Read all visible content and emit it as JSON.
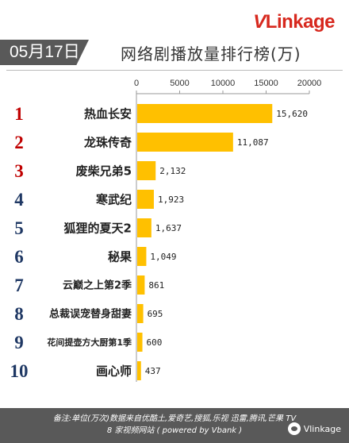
{
  "brand": {
    "logo_v": "V",
    "logo_rest": "Linkage"
  },
  "date": "05月17日",
  "title": "网络剧播放量排行榜(万)",
  "chart_data": {
    "type": "bar",
    "orientation": "horizontal",
    "title": "网络剧播放量排行榜(万)",
    "xlim": [
      0,
      20000
    ],
    "ticks": [
      0,
      5000,
      10000,
      15000,
      20000
    ],
    "tick_labels": [
      "0",
      "5000",
      "10000",
      "15000",
      "20000"
    ],
    "bar_color": "#FFC000",
    "rank_colors": [
      "#c00000",
      "#c00000",
      "#c00000",
      "#1f3864",
      "#1f3864",
      "#1f3864",
      "#1f3864",
      "#1f3864",
      "#1f3864",
      "#1f3864"
    ],
    "ranks": [
      "1",
      "2",
      "3",
      "4",
      "5",
      "6",
      "7",
      "8",
      "9",
      "10"
    ],
    "categories": [
      "热血长安",
      "龙珠传奇",
      "废柴兄弟5",
      "寒武纪",
      "狐狸的夏天2",
      "秘果",
      "云巅之上第2季",
      "总裁误宠替身甜妻",
      "花间提壶方大厨第1季",
      "画心师"
    ],
    "values": [
      15620,
      11087,
      2132,
      1923,
      1637,
      1049,
      861,
      695,
      600,
      437
    ],
    "value_labels": [
      "15,620",
      "11,087",
      "2,132",
      "1,923",
      "1,637",
      "1,049",
      "861",
      "695",
      "600",
      "437"
    ]
  },
  "footer": {
    "line1": "备注:单位(万次)数据来自优酷土,爱奇艺,搜狐,乐视 迅雷,腾讯,芒果 TV",
    "line2": "8 家视频网站 ( powered by Vbank )",
    "watermark": "Vlinkage"
  }
}
